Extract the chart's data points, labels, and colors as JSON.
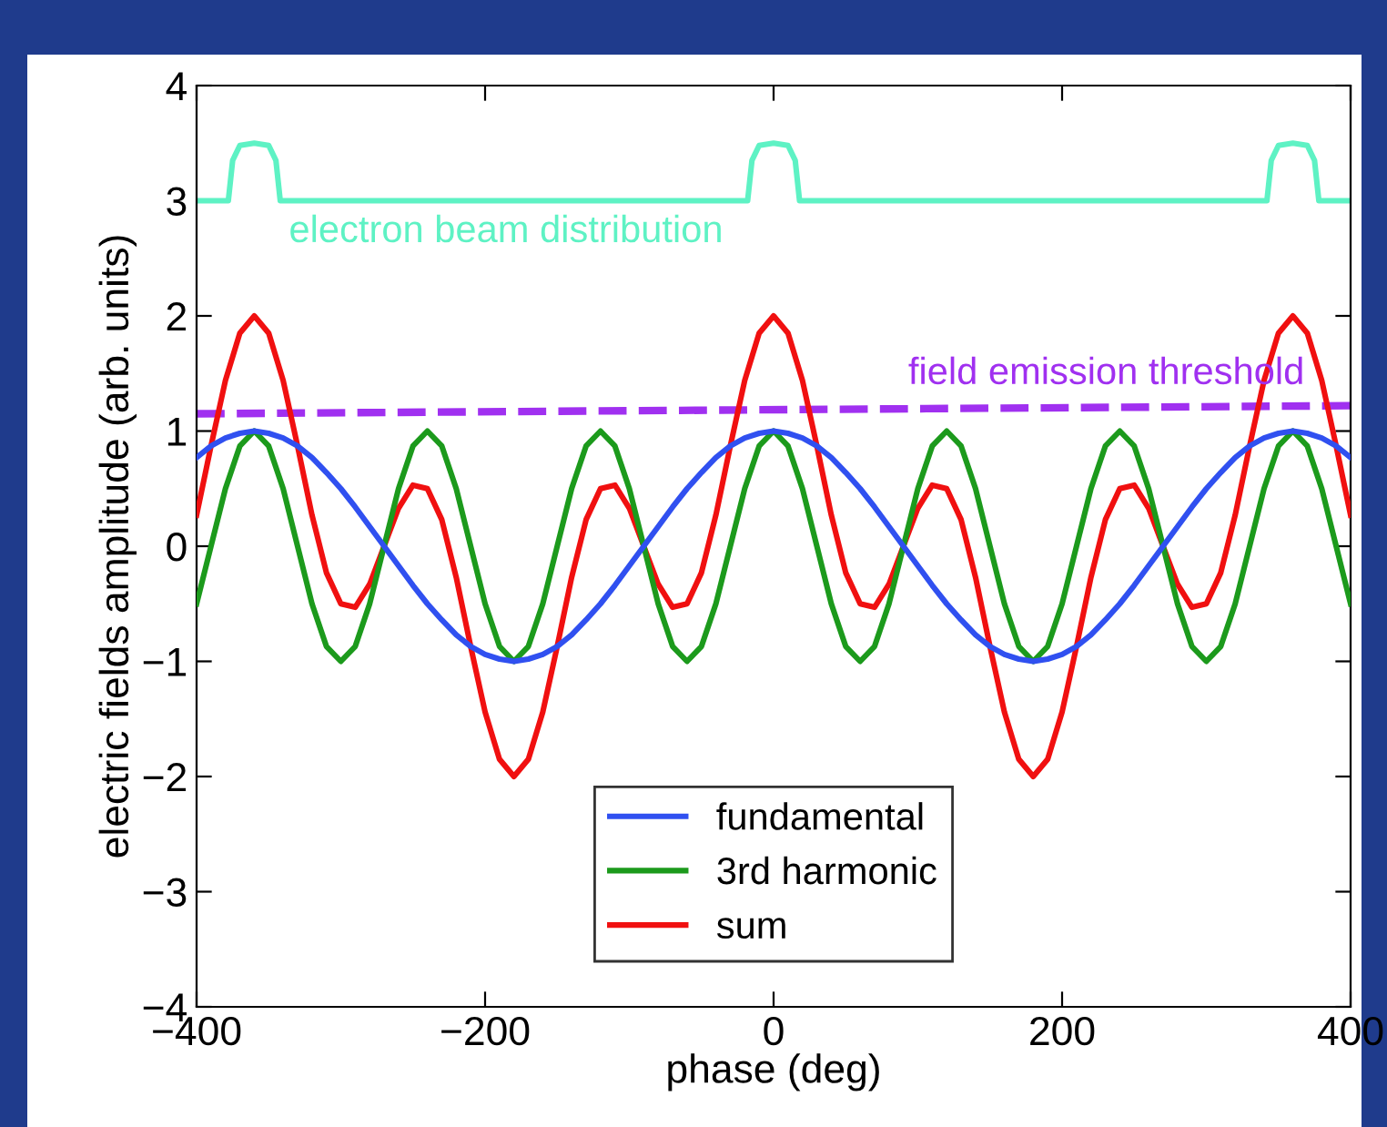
{
  "chart_data": {
    "type": "line",
    "xlabel": "phase (deg)",
    "ylabel": "electric fields amplitude (arb. units)",
    "x": [
      -400,
      -390,
      -380,
      -370,
      -360,
      -350,
      -340,
      -330,
      -320,
      -310,
      -300,
      -290,
      -280,
      -270,
      -260,
      -250,
      -240,
      -230,
      -220,
      -210,
      -200,
      -190,
      -180,
      -170,
      -160,
      -150,
      -140,
      -130,
      -120,
      -110,
      -100,
      -90,
      -80,
      -70,
      -60,
      -50,
      -40,
      -30,
      -20,
      -10,
      0,
      10,
      20,
      30,
      40,
      50,
      60,
      70,
      80,
      90,
      100,
      110,
      120,
      130,
      140,
      150,
      160,
      170,
      180,
      190,
      200,
      210,
      220,
      230,
      240,
      250,
      260,
      270,
      280,
      290,
      300,
      310,
      320,
      330,
      340,
      350,
      360,
      370,
      380,
      390,
      400
    ],
    "series": [
      {
        "name": "fundamental",
        "color": "#3050f0",
        "values": [
          0.77,
          0.87,
          0.94,
          0.98,
          1,
          0.98,
          0.94,
          0.87,
          0.77,
          0.64,
          0.5,
          0.34,
          0.17,
          0,
          -0.17,
          -0.34,
          -0.5,
          -0.64,
          -0.77,
          -0.87,
          -0.94,
          -0.98,
          -1,
          -0.98,
          -0.94,
          -0.87,
          -0.77,
          -0.64,
          -0.5,
          -0.34,
          -0.17,
          0,
          0.17,
          0.34,
          0.5,
          0.64,
          0.77,
          0.87,
          0.94,
          0.98,
          1,
          0.98,
          0.94,
          0.87,
          0.77,
          0.64,
          0.5,
          0.34,
          0.17,
          0,
          -0.17,
          -0.34,
          -0.5,
          -0.64,
          -0.77,
          -0.87,
          -0.94,
          -0.98,
          -1,
          -0.98,
          -0.94,
          -0.87,
          -0.77,
          -0.64,
          -0.5,
          -0.34,
          -0.17,
          0,
          0.17,
          0.34,
          0.5,
          0.64,
          0.77,
          0.87,
          0.94,
          0.98,
          1,
          0.98,
          0.94,
          0.87,
          0.77
        ]
      },
      {
        "name": "3rd harmonic",
        "color": "#1c9a1c",
        "values": [
          -0.5,
          0,
          0.5,
          0.87,
          1,
          0.87,
          0.5,
          0,
          -0.5,
          -0.87,
          -1,
          -0.87,
          -0.5,
          0,
          0.5,
          0.87,
          1,
          0.87,
          0.5,
          0,
          -0.5,
          -0.87,
          -1,
          -0.87,
          -0.5,
          0,
          0.5,
          0.87,
          1,
          0.87,
          0.5,
          0,
          -0.5,
          -0.87,
          -1,
          -0.87,
          -0.5,
          0,
          0.5,
          0.87,
          1,
          0.87,
          0.5,
          0,
          -0.5,
          -0.87,
          -1,
          -0.87,
          -0.5,
          0,
          0.5,
          0.87,
          1,
          0.87,
          0.5,
          0,
          -0.5,
          -0.87,
          -1,
          -0.87,
          -0.5,
          0,
          0.5,
          0.87,
          1,
          0.87,
          0.5,
          0,
          -0.5,
          -0.87,
          -1,
          -0.87,
          -0.5,
          0,
          0.5,
          0.87,
          1,
          0.87,
          0.5,
          0,
          -0.5
        ]
      },
      {
        "name": "sum",
        "color": "#f01010",
        "values": [
          0.27,
          0.87,
          1.44,
          1.85,
          2,
          1.85,
          1.44,
          0.87,
          0.27,
          -0.23,
          -0.5,
          -0.53,
          -0.33,
          0,
          0.33,
          0.53,
          0.5,
          0.23,
          -0.27,
          -0.87,
          -1.44,
          -1.85,
          -2,
          -1.85,
          -1.44,
          -0.87,
          -0.27,
          0.23,
          0.5,
          0.53,
          0.33,
          0,
          -0.33,
          -0.53,
          -0.5,
          -0.23,
          0.27,
          0.87,
          1.44,
          1.85,
          2,
          1.85,
          1.44,
          0.87,
          0.27,
          -0.23,
          -0.5,
          -0.53,
          -0.33,
          0,
          0.33,
          0.53,
          0.5,
          0.23,
          -0.27,
          -0.87,
          -1.44,
          -1.85,
          -2,
          -1.85,
          -1.44,
          -0.87,
          -0.27,
          0.23,
          0.5,
          0.53,
          0.33,
          0,
          -0.33,
          -0.53,
          -0.5,
          -0.23,
          0.27,
          0.87,
          1.44,
          1.85,
          2,
          1.85,
          1.44,
          0.87,
          0.27
        ]
      },
      {
        "name": "electron beam distribution",
        "color": "#5ef2c4",
        "x": [
          -400,
          -378,
          -375,
          -370,
          -360,
          -350,
          -345,
          -342,
          -18,
          -15,
          -10,
          0,
          10,
          15,
          18,
          342,
          345,
          350,
          360,
          370,
          375,
          378,
          400
        ],
        "values": [
          3,
          3,
          3.35,
          3.48,
          3.5,
          3.48,
          3.35,
          3,
          3,
          3.35,
          3.48,
          3.5,
          3.48,
          3.35,
          3,
          3,
          3.35,
          3.48,
          3.5,
          3.48,
          3.35,
          3,
          3
        ]
      },
      {
        "name": "field emission threshold",
        "color": "#a030f0",
        "line_style": "dashed",
        "x": [
          -400,
          400
        ],
        "values": [
          1.15,
          1.22
        ]
      }
    ],
    "xlim": [
      -400,
      400
    ],
    "ylim": [
      -4,
      4
    ],
    "xticks": [
      {
        "value": -400,
        "label": "−400"
      },
      {
        "value": -200,
        "label": "−200"
      },
      0,
      200,
      400
    ],
    "yticks": [
      {
        "value": -4,
        "label": "−4"
      },
      {
        "value": -3,
        "label": "−3"
      },
      {
        "value": -2,
        "label": "−2"
      },
      {
        "value": -1,
        "label": "−1"
      },
      0,
      1,
      2,
      3,
      4
    ],
    "grid": false,
    "legend": "bottom",
    "marker": "none",
    "line_style": "solid"
  }
}
